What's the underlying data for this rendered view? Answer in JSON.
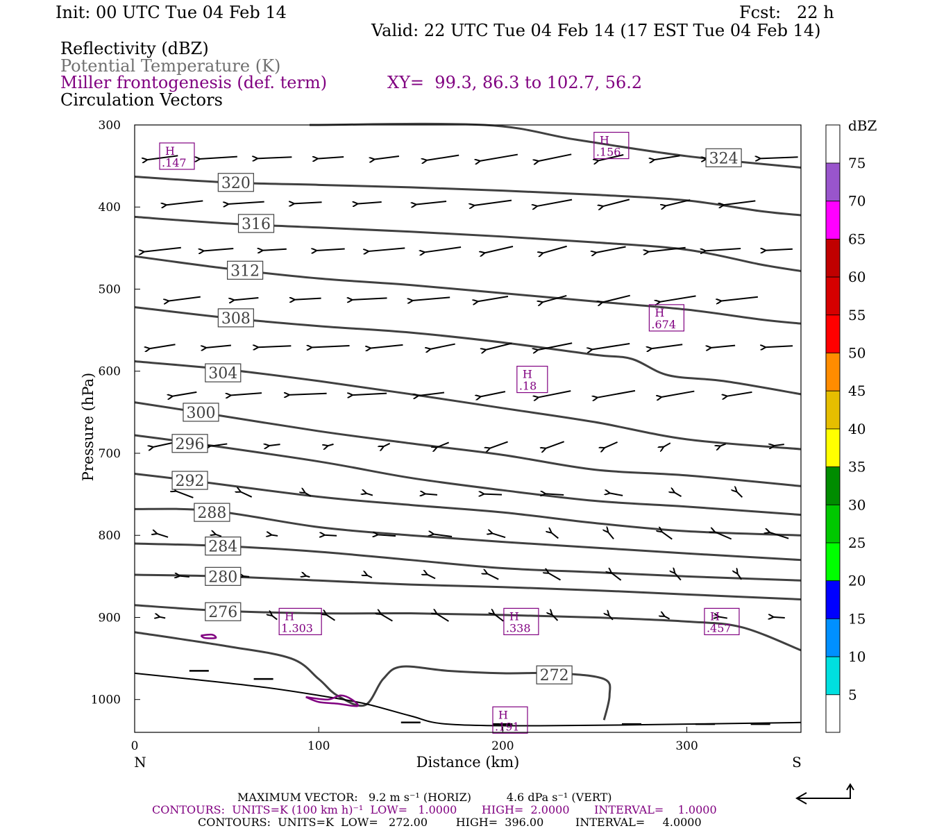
{
  "header": {
    "init": "Init: 00 UTC Tue 04 Feb 14",
    "fcst": "Fcst:   22 h",
    "valid": "Valid: 22 UTC Tue 04 Feb 14 (17 EST Tue 04 Feb 14)",
    "fields": [
      {
        "label": "Reflectivity (dBZ)",
        "color": "#000000"
      },
      {
        "label": "Potential Temperature (K)",
        "color": "#707070"
      },
      {
        "label": "Miller frontogenesis (def. term)",
        "color": "#800080"
      },
      {
        "label": "Circulation Vectors",
        "color": "#000000"
      }
    ],
    "xy": "XY=  99.3, 86.3 to 102.7, 56.2"
  },
  "chart_data": {
    "type": "cross-section",
    "xlabel": "Distance (km)",
    "ylabel": "Pressure (hPa)",
    "xlim": [
      0,
      362
    ],
    "ylim": [
      300,
      1040
    ],
    "xticks": [
      0,
      100,
      200,
      300
    ],
    "yticks": [
      300,
      400,
      500,
      600,
      700,
      800,
      900,
      1000
    ],
    "x_end_labels": {
      "left": "N",
      "right": "S"
    },
    "theta_contours": [
      {
        "label": "320",
        "points": [
          [
            0,
            363
          ],
          [
            50,
            370
          ],
          [
            100,
            373
          ],
          [
            150,
            376
          ],
          [
            200,
            380
          ],
          [
            250,
            385
          ],
          [
            300,
            392
          ],
          [
            340,
            405
          ],
          [
            362,
            410
          ]
        ],
        "label_at": [
          55,
          370
        ]
      },
      {
        "label": "316",
        "points": [
          [
            0,
            412
          ],
          [
            50,
            420
          ],
          [
            100,
            425
          ],
          [
            150,
            430
          ],
          [
            200,
            436
          ],
          [
            250,
            443
          ],
          [
            300,
            452
          ],
          [
            340,
            470
          ],
          [
            362,
            478
          ]
        ],
        "label_at": [
          66,
          420
        ]
      },
      {
        "label": "312",
        "points": [
          [
            0,
            460
          ],
          [
            50,
            475
          ],
          [
            100,
            487
          ],
          [
            150,
            495
          ],
          [
            200,
            505
          ],
          [
            250,
            515
          ],
          [
            300,
            525
          ],
          [
            340,
            537
          ],
          [
            362,
            542
          ]
        ],
        "label_at": [
          60,
          477
        ]
      },
      {
        "label": "308",
        "points": [
          [
            0,
            522
          ],
          [
            50,
            535
          ],
          [
            100,
            545
          ],
          [
            150,
            553
          ],
          [
            200,
            565
          ],
          [
            250,
            580
          ],
          [
            270,
            585
          ],
          [
            290,
            605
          ],
          [
            320,
            612
          ],
          [
            362,
            628
          ]
        ],
        "label_at": [
          55,
          535
        ]
      },
      {
        "label": "304",
        "points": [
          [
            0,
            588
          ],
          [
            50,
            598
          ],
          [
            100,
            612
          ],
          [
            150,
            628
          ],
          [
            200,
            645
          ],
          [
            250,
            662
          ],
          [
            300,
            683
          ],
          [
            362,
            695
          ]
        ],
        "label_at": [
          48,
          602
        ]
      },
      {
        "label": "300",
        "points": [
          [
            0,
            638
          ],
          [
            35,
            650
          ],
          [
            100,
            673
          ],
          [
            150,
            688
          ],
          [
            200,
            702
          ],
          [
            250,
            720
          ],
          [
            300,
            727
          ],
          [
            362,
            740
          ]
        ],
        "label_at": [
          36,
          650
        ]
      },
      {
        "label": "296",
        "points": [
          [
            0,
            678
          ],
          [
            30,
            687
          ],
          [
            100,
            710
          ],
          [
            150,
            730
          ],
          [
            200,
            745
          ],
          [
            250,
            758
          ],
          [
            300,
            765
          ],
          [
            362,
            775
          ]
        ],
        "label_at": [
          30,
          688
        ]
      },
      {
        "label": "292",
        "points": [
          [
            0,
            725
          ],
          [
            30,
            733
          ],
          [
            100,
            753
          ],
          [
            150,
            763
          ],
          [
            200,
            772
          ],
          [
            250,
            785
          ],
          [
            300,
            795
          ],
          [
            362,
            800
          ]
        ],
        "label_at": [
          30,
          733
        ]
      },
      {
        "label": "288",
        "points": [
          [
            0,
            768
          ],
          [
            42,
            770
          ],
          [
            100,
            790
          ],
          [
            150,
            800
          ],
          [
            200,
            808
          ],
          [
            250,
            815
          ],
          [
            300,
            822
          ],
          [
            362,
            830
          ]
        ],
        "label_at": [
          42,
          772
        ]
      },
      {
        "label": "284",
        "points": [
          [
            0,
            810
          ],
          [
            48,
            813
          ],
          [
            100,
            820
          ],
          [
            150,
            830
          ],
          [
            200,
            840
          ],
          [
            250,
            845
          ],
          [
            300,
            850
          ],
          [
            362,
            855
          ]
        ],
        "label_at": [
          48,
          813
        ]
      },
      {
        "label": "280",
        "points": [
          [
            0,
            848
          ],
          [
            48,
            850
          ],
          [
            100,
            855
          ],
          [
            150,
            860
          ],
          [
            200,
            863
          ],
          [
            250,
            867
          ],
          [
            300,
            872
          ],
          [
            362,
            878
          ]
        ],
        "label_at": [
          48,
          850
        ]
      },
      {
        "label": "276",
        "points": [
          [
            0,
            885
          ],
          [
            48,
            892
          ],
          [
            100,
            895
          ],
          [
            150,
            895
          ],
          [
            200,
            897
          ],
          [
            250,
            900
          ],
          [
            300,
            905
          ],
          [
            330,
            912
          ],
          [
            362,
            940
          ]
        ],
        "label_at": [
          48,
          893
        ]
      },
      {
        "label": "272",
        "points": [
          [
            0,
            918
          ],
          [
            50,
            935
          ],
          [
            85,
            950
          ],
          [
            100,
            975
          ],
          [
            110,
            995
          ],
          [
            125,
            1007
          ],
          [
            135,
            975
          ],
          [
            145,
            960
          ],
          [
            170,
            965
          ],
          [
            200,
            968
          ],
          [
            230,
            968
          ],
          [
            255,
            975
          ],
          [
            258,
            995
          ],
          [
            255,
            1025
          ]
        ],
        "label_at": [
          228,
          970
        ]
      }
    ],
    "theta_top": {
      "points": [
        [
          95,
          300
        ],
        [
          190,
          300
        ],
        [
          240,
          318
        ],
        [
          300,
          338
        ],
        [
          362,
          352
        ]
      ],
      "label": "324",
      "label_at": [
        320,
        340
      ]
    },
    "max_labels": [
      {
        "label": "H",
        "value": ".147",
        "at": [
          23,
          338
        ]
      },
      {
        "label": "H",
        "value": ".156",
        "at": [
          259,
          325
        ]
      },
      {
        "label": "H",
        "value": ".674",
        "at": [
          289,
          535
        ]
      },
      {
        "label": "H",
        "value": ".18",
        "at": [
          216,
          610
        ]
      },
      {
        "label": "H",
        "value": "1.303",
        "at": [
          90,
          905
        ]
      },
      {
        "label": "H",
        "value": ".338",
        "at": [
          210,
          905
        ]
      },
      {
        "label": "H",
        "value": ".457",
        "at": [
          319,
          905
        ]
      },
      {
        "label": "H",
        "value": ".191",
        "at": [
          204,
          1025
        ]
      }
    ],
    "colorbar": {
      "title": "dBZ",
      "levels": [
        "5",
        "10",
        "15",
        "20",
        "25",
        "30",
        "35",
        "40",
        "45",
        "50",
        "55",
        "60",
        "65",
        "70",
        "75"
      ],
      "colors": [
        "#ffffff",
        "#00e0e0",
        "#0090ff",
        "#0000ff",
        "#00ff00",
        "#00c800",
        "#008c00",
        "#ffff00",
        "#e6be00",
        "#ff8c00",
        "#ff0000",
        "#d60000",
        "#c00000",
        "#ff00ff",
        "#9955cc",
        "#ffffff"
      ]
    }
  },
  "footer": {
    "maxvec": "MAXIMUM VECTOR:   9.2 m s⁻¹ (HORIZ)          4.6 dPa s⁻¹ (VERT)",
    "contours1": "CONTOURS:  UNITS=K (100 km h)⁻¹  LOW=   1.0000       HIGH=  2.0000       INTERVAL=    1.0000",
    "contours2": "CONTOURS:  UNITS=K  LOW=   272.00        HIGH=  396.00         INTERVAL=     4.0000"
  }
}
